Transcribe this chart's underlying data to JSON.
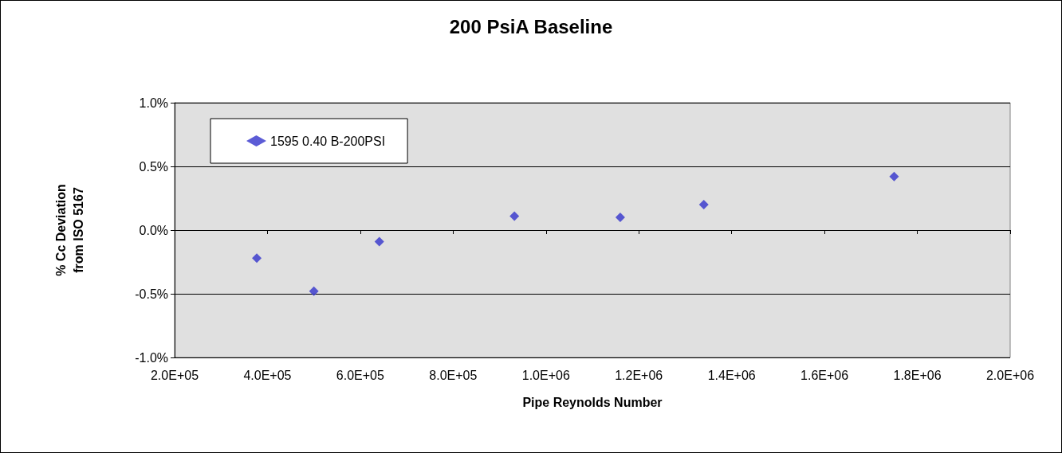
{
  "chart_data": {
    "type": "scatter",
    "title": "200 PsiA Baseline",
    "xlabel": "Pipe Reynolds Number",
    "ylabel": "% Cc Deviation\nfrom ISO 5167",
    "x": [
      377000,
      500000,
      641000,
      932000,
      1160000,
      1340000,
      1750000
    ],
    "series": [
      {
        "name": "1595 0.40 B-200PSI",
        "color": "#3333cc",
        "values": [
          -0.22,
          -0.48,
          -0.09,
          0.11,
          0.1,
          0.2,
          0.42
        ]
      }
    ],
    "xlim": [
      200000,
      2000000
    ],
    "xticks": [
      {
        "value": 200000,
        "label": "2.0E+05"
      },
      {
        "value": 400000,
        "label": "4.0E+05"
      },
      {
        "value": 600000,
        "label": "6.0E+05"
      },
      {
        "value": 800000,
        "label": "8.0E+05"
      },
      {
        "value": 1000000,
        "label": "1.0E+06"
      },
      {
        "value": 1200000,
        "label": "1.2E+06"
      },
      {
        "value": 1400000,
        "label": "1.4E+06"
      },
      {
        "value": 1600000,
        "label": "1.6E+06"
      },
      {
        "value": 1800000,
        "label": "1.8E+06"
      },
      {
        "value": 2000000,
        "label": "2.0E+06"
      }
    ],
    "ylim": [
      -1,
      1
    ],
    "yticks": [
      {
        "value": -1,
        "label": "-1.0%"
      },
      {
        "value": -0.5,
        "label": "-0.5%"
      },
      {
        "value": 0,
        "label": "0.0%"
      },
      {
        "value": 0.5,
        "label": "0.5%"
      },
      {
        "value": 1,
        "label": "1.0%"
      }
    ],
    "grid": "y",
    "legend": "top left",
    "marker": "diamond"
  }
}
